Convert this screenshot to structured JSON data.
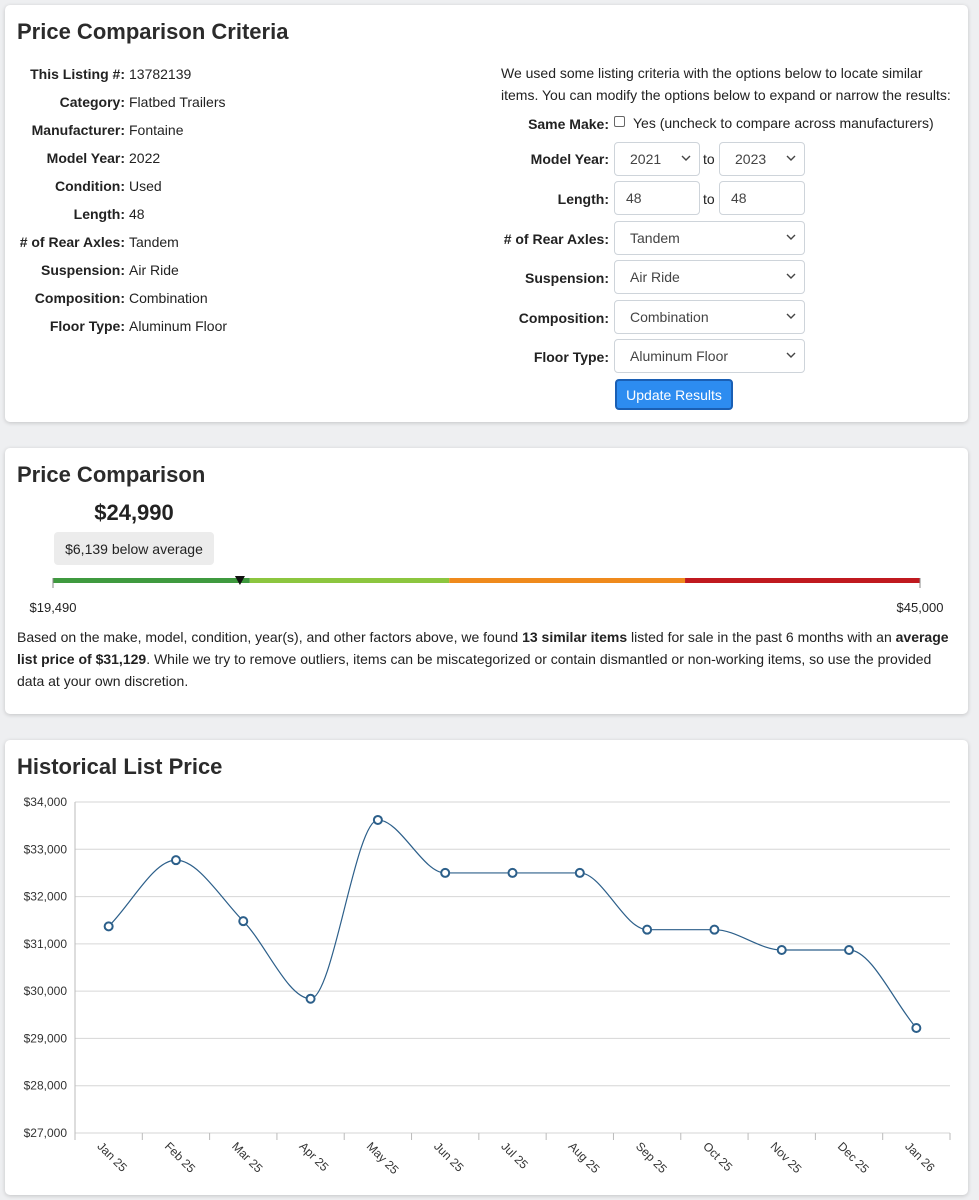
{
  "criteria": {
    "title": "Price Comparison Criteria",
    "listing": [
      {
        "label": "This Listing #:",
        "value": "13782139"
      },
      {
        "label": "Category:",
        "value": "Flatbed Trailers"
      },
      {
        "label": "Manufacturer:",
        "value": "Fontaine"
      },
      {
        "label": "Model Year:",
        "value": "2022"
      },
      {
        "label": "Condition:",
        "value": "Used"
      },
      {
        "label": "Length:",
        "value": "48"
      },
      {
        "label": "# of Rear Axles:",
        "value": "Tandem"
      },
      {
        "label": "Suspension:",
        "value": "Air Ride"
      },
      {
        "label": "Composition:",
        "value": "Combination"
      },
      {
        "label": "Floor Type:",
        "value": "Aluminum Floor"
      }
    ],
    "intro": [
      "We used some listing criteria with the options below to locate similar",
      "items. You can modify the options below to expand or narrow the results:"
    ],
    "form": {
      "same_make": {
        "label": "Same Make:",
        "option": "Yes (uncheck to compare across manufacturers)"
      },
      "model_year": {
        "label": "Model Year:",
        "from": "2021",
        "to_word": "to",
        "to": "2023"
      },
      "length": {
        "label": "Length:",
        "from": "48",
        "to_word": "to",
        "to": "48"
      },
      "selects": [
        {
          "label": "# of Rear Axles:",
          "value": "Tandem"
        },
        {
          "label": "Suspension:",
          "value": "Air Ride"
        },
        {
          "label": "Composition:",
          "value": "Combination"
        },
        {
          "label": "Floor Type:",
          "value": "Aluminum Floor"
        }
      ],
      "button": "Update Results"
    }
  },
  "comparison": {
    "title": "Price Comparison",
    "gauge": {
      "value": 24990,
      "value_label": "$24,990",
      "min": {
        "value": 19490,
        "label": "$19,490"
      },
      "max": {
        "value": 45000,
        "label": "$45,000"
      }
    },
    "badge": "$6,139 below average",
    "description": [
      {
        "text": "Based on the make, model, condition, year(s), and other factors above, we found ",
        "bold": false
      },
      {
        "text": "13 similar items",
        "bold": true
      },
      {
        "text": " listed for sale in the past 6 months with an ",
        "bold": false
      },
      {
        "text": "average list price of $31,129",
        "bold": true
      },
      {
        "text": ". While we try to remove outliers, items can be miscategorized or contain dismantled or non-working items, so use the provided data at your own discretion.",
        "bold": false
      }
    ]
  },
  "chart_data": {
    "type": "line",
    "title": "Historical List Price",
    "categories": [
      "Jan 25",
      "Feb 25",
      "Mar 25",
      "Apr 25",
      "May 25",
      "Jun 25",
      "Jul 25",
      "Aug 25",
      "Sep 25",
      "Oct 25",
      "Nov 25",
      "Dec 25",
      "Jan 26"
    ],
    "values": [
      31370,
      32770,
      31480,
      29840,
      33620,
      32500,
      32500,
      32500,
      31300,
      31300,
      30870,
      30870,
      29220
    ],
    "color": "#2c5f8a",
    "ylim": [
      27000,
      34000
    ],
    "yticks": [
      {
        "value": 27000,
        "label": "$27,000"
      },
      {
        "value": 28000,
        "label": "$28,000"
      },
      {
        "value": 29000,
        "label": "$29,000"
      },
      {
        "value": 30000,
        "label": "$30,000"
      },
      {
        "value": 31000,
        "label": "$31,000"
      },
      {
        "value": 32000,
        "label": "$32,000"
      },
      {
        "value": 33000,
        "label": "$33,000"
      },
      {
        "value": 34000,
        "label": "$34,000"
      }
    ],
    "grid": true
  }
}
